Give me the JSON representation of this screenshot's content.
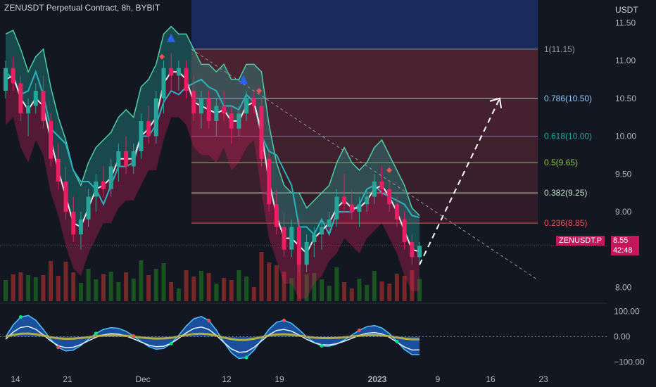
{
  "header": {
    "title": "ZENUSDT Perpetual Contract, 8h, BYBIT",
    "currency": "USDT"
  },
  "colors": {
    "background": "#131722",
    "bull": "#26a69a",
    "bear": "#ef5350",
    "pink": "#e91e63",
    "teal_line": "#2ab3bf",
    "fib_dark": "#7a2b3d",
    "blue_zone": "#1a2a5c"
  },
  "tags": {
    "symbol_label": "ZENUSDT.P",
    "last_price": "8.55",
    "countdown": "42:48"
  },
  "chart_data": {
    "type": "candlestick",
    "price_axis": {
      "range": [
        7.8,
        11.8
      ],
      "ticks": [
        "11.50",
        "11.00",
        "10.50",
        "10.00",
        "9.50",
        "9.00",
        "8.00"
      ],
      "tick_values": [
        11.5,
        11.0,
        10.5,
        10.0,
        9.5,
        9.0,
        8.0
      ]
    },
    "time_axis": {
      "labels": [
        "14",
        "21",
        "Dec",
        "12",
        "19",
        "2023",
        "9",
        "16",
        "23"
      ]
    },
    "fibonacci": [
      {
        "label": "1(11.15)",
        "value": 11.15,
        "color": "#9598a1"
      },
      {
        "label": "0.786(10.50)",
        "value": 10.5,
        "color": "#90caf9"
      },
      {
        "label": "0.618(10.00)",
        "value": 10.0,
        "color": "#26a69a"
      },
      {
        "label": "0.5(9.65)",
        "value": 9.65,
        "color": "#8bc34a"
      },
      {
        "label": "0.382(9.25)",
        "value": 9.25,
        "color": "#c8e6c9"
      },
      {
        "label": "0.236(8.85)",
        "value": 8.85,
        "color": "#ef5350"
      }
    ],
    "oscillator": {
      "ticks": [
        "100.00",
        "0.00",
        "−100.00"
      ],
      "tick_values": [
        100,
        0,
        -100
      ],
      "range": [
        -130,
        130
      ]
    },
    "candles": [
      [
        10.6,
        11.0,
        10.5,
        10.9
      ],
      [
        10.9,
        11.05,
        10.6,
        10.7
      ],
      [
        10.7,
        10.8,
        10.2,
        10.3
      ],
      [
        10.3,
        10.5,
        10.0,
        10.4
      ],
      [
        10.4,
        10.7,
        10.3,
        10.6
      ],
      [
        10.6,
        10.8,
        10.1,
        10.2
      ],
      [
        10.2,
        10.3,
        9.6,
        9.7
      ],
      [
        9.7,
        9.9,
        9.3,
        9.4
      ],
      [
        9.4,
        9.6,
        8.9,
        9.0
      ],
      [
        9.0,
        9.2,
        8.6,
        8.7
      ],
      [
        8.7,
        9.0,
        8.5,
        8.9
      ],
      [
        8.9,
        9.3,
        8.8,
        9.2
      ],
      [
        9.2,
        9.5,
        9.0,
        9.4
      ],
      [
        9.4,
        9.6,
        9.2,
        9.3
      ],
      [
        9.3,
        9.7,
        9.2,
        9.6
      ],
      [
        9.6,
        9.9,
        9.4,
        9.8
      ],
      [
        9.8,
        10.0,
        9.5,
        9.6
      ],
      [
        9.6,
        9.9,
        9.5,
        9.8
      ],
      [
        9.8,
        10.3,
        9.7,
        10.2
      ],
      [
        10.2,
        10.4,
        9.9,
        10.0
      ],
      [
        10.0,
        10.6,
        9.9,
        10.5
      ],
      [
        10.5,
        11.0,
        10.3,
        10.9
      ],
      [
        10.9,
        11.1,
        10.6,
        10.8
      ],
      [
        10.8,
        11.0,
        10.6,
        10.9
      ],
      [
        10.9,
        11.0,
        10.5,
        10.6
      ],
      [
        10.6,
        10.8,
        10.2,
        10.3
      ],
      [
        10.3,
        10.6,
        10.1,
        10.5
      ],
      [
        10.5,
        10.6,
        10.1,
        10.2
      ],
      [
        10.2,
        10.5,
        10.0,
        10.4
      ],
      [
        10.4,
        10.6,
        10.2,
        10.3
      ],
      [
        10.3,
        10.4,
        9.9,
        10.1
      ],
      [
        10.1,
        10.4,
        10.0,
        10.3
      ],
      [
        10.3,
        10.6,
        10.2,
        10.5
      ],
      [
        10.5,
        10.6,
        10.3,
        10.4
      ],
      [
        10.4,
        10.5,
        9.6,
        9.7
      ],
      [
        9.7,
        9.8,
        9.0,
        9.1
      ],
      [
        9.1,
        9.3,
        8.7,
        8.8
      ],
      [
        8.8,
        9.0,
        8.4,
        8.5
      ],
      [
        8.5,
        8.9,
        8.4,
        8.8
      ],
      [
        8.8,
        8.9,
        8.2,
        8.3
      ],
      [
        8.3,
        8.7,
        8.2,
        8.6
      ],
      [
        8.6,
        8.8,
        8.4,
        8.7
      ],
      [
        8.7,
        8.9,
        8.5,
        8.8
      ],
      [
        8.8,
        9.0,
        8.7,
        8.9
      ],
      [
        8.9,
        9.3,
        8.8,
        9.2
      ],
      [
        9.2,
        9.5,
        9.0,
        9.1
      ],
      [
        9.1,
        9.3,
        8.9,
        9.0
      ],
      [
        9.0,
        9.2,
        8.8,
        9.1
      ],
      [
        9.1,
        9.3,
        9.0,
        9.2
      ],
      [
        9.2,
        9.5,
        9.1,
        9.4
      ],
      [
        9.4,
        9.6,
        9.2,
        9.3
      ],
      [
        9.3,
        9.4,
        9.0,
        9.1
      ],
      [
        9.1,
        9.2,
        8.8,
        8.9
      ],
      [
        8.9,
        9.0,
        8.5,
        8.6
      ],
      [
        8.6,
        8.7,
        8.3,
        8.4
      ],
      [
        8.4,
        8.6,
        8.3,
        8.55
      ]
    ]
  }
}
